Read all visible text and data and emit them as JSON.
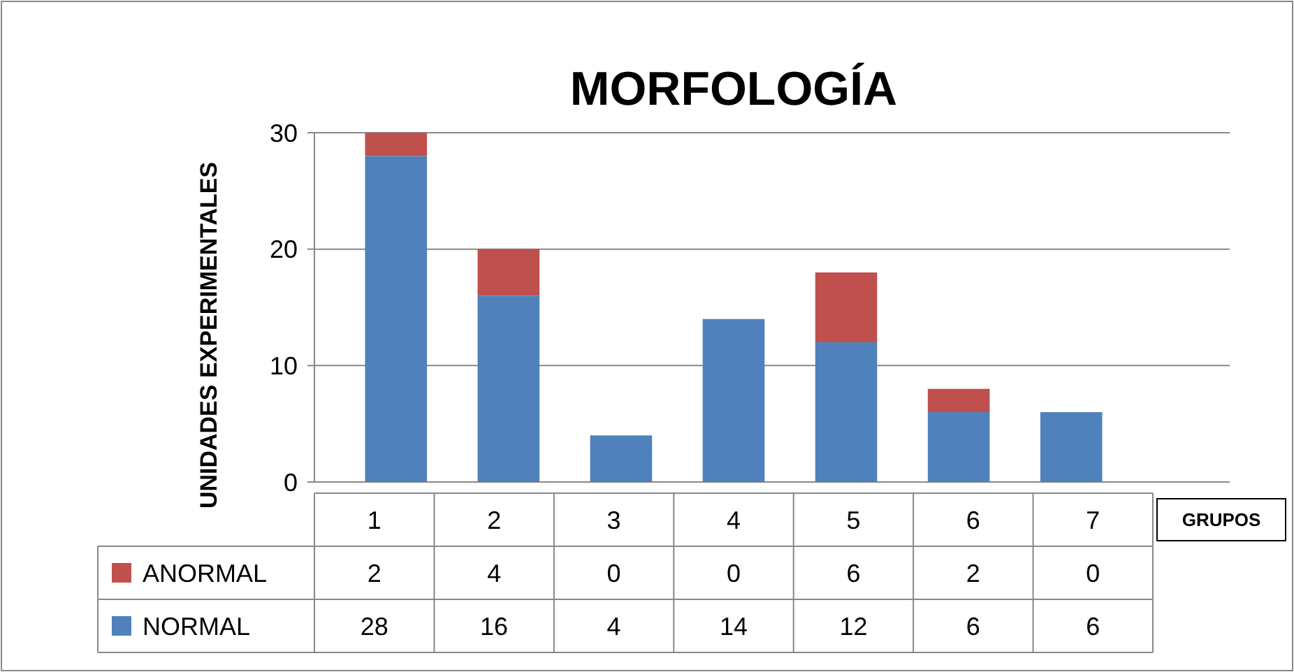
{
  "chart_data": {
    "type": "bar",
    "title": "MORFOLOGÍA",
    "xlabel": "GRUPOS",
    "ylabel": "UNIDADES EXPERIMENTALES",
    "categories": [
      "1",
      "2",
      "3",
      "4",
      "5",
      "6",
      "7"
    ],
    "series": [
      {
        "name": "NORMAL",
        "color": "#4f81bd",
        "values": [
          28,
          16,
          4,
          14,
          12,
          6,
          6
        ]
      },
      {
        "name": "ANORMAL",
        "color": "#c0504d",
        "values": [
          2,
          4,
          0,
          0,
          6,
          2,
          0
        ]
      }
    ],
    "stacked": true,
    "ylim": [
      0,
      30
    ],
    "yticks": [
      0,
      10,
      20,
      30
    ],
    "grid": "y",
    "legend": "bottom",
    "data_labels": true
  }
}
